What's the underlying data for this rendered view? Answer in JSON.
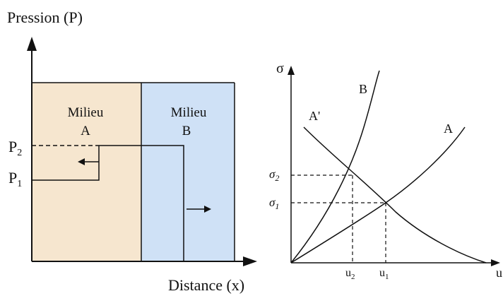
{
  "colors": {
    "medium_a_fill": "#f6e6cf",
    "medium_b_fill": "#cfe1f6",
    "ink": "#111111"
  },
  "left_diagram": {
    "y_axis_label": "Pression (P)",
    "x_axis_label": "Distance (x)",
    "medium_a": {
      "line1": "Milieu",
      "line2": "A"
    },
    "medium_b": {
      "line1": "Milieu",
      "line2": "B"
    },
    "p1": {
      "letter": "P",
      "sub": "1"
    },
    "p2": {
      "letter": "P",
      "sub": "2"
    },
    "reflected_arrow_icon": "arrow-left-icon",
    "transmitted_arrow_icon": "arrow-right-icon"
  },
  "right_diagram": {
    "y_axis_label": "σ",
    "x_axis_label": "u",
    "curves": {
      "a_prime": "A'",
      "b": "B",
      "a": "A"
    },
    "sigma1": {
      "letter": "σ",
      "sub": "1"
    },
    "sigma2": {
      "letter": "σ",
      "sub": "2"
    },
    "u1": {
      "letter": "u",
      "sub": "1"
    },
    "u2": {
      "letter": "u",
      "sub": "2"
    }
  }
}
